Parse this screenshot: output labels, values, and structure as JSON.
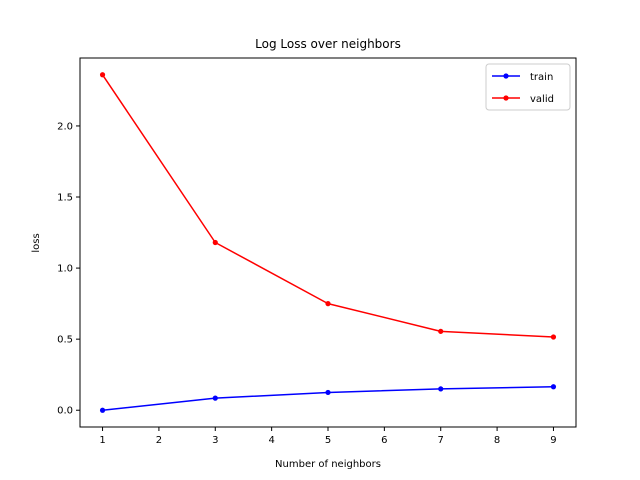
{
  "chart_data": {
    "type": "line",
    "title": "Log Loss over neighbors",
    "xlabel": "Number of neighbors",
    "ylabel": "loss",
    "x": [
      1,
      3,
      5,
      7,
      9
    ],
    "xlim": [
      0.6,
      9.4
    ],
    "ylim": [
      -0.118,
      2.478
    ],
    "xticks": [
      1,
      2,
      3,
      4,
      5,
      6,
      7,
      8,
      9
    ],
    "yticks": [
      0.0,
      0.5,
      1.0,
      1.5,
      2.0
    ],
    "ytick_labels": [
      "0.0",
      "0.5",
      "1.0",
      "1.5",
      "2.0"
    ],
    "grid": false,
    "legend_position": "top-right",
    "series": [
      {
        "name": "train",
        "color": "#0000ff",
        "values": [
          0.0,
          0.085,
          0.125,
          0.15,
          0.165
        ]
      },
      {
        "name": "valid",
        "color": "#ff0000",
        "values": [
          2.36,
          1.18,
          0.75,
          0.555,
          0.515
        ]
      }
    ]
  }
}
